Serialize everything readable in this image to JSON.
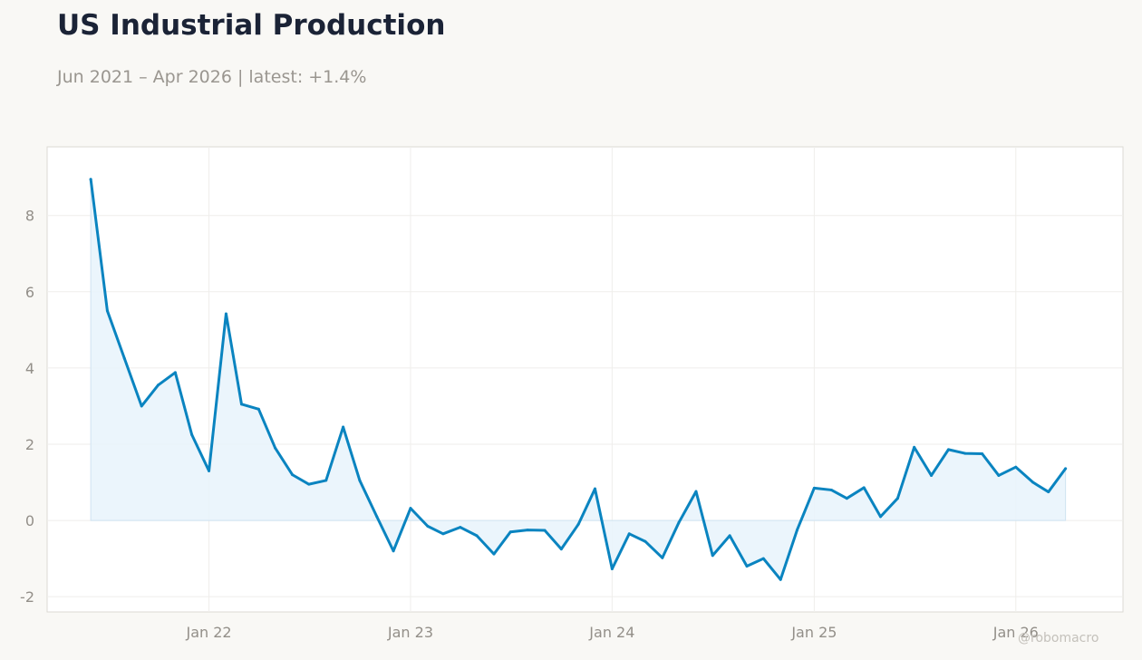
{
  "header": {
    "title": "US Industrial Production",
    "subtitle": "Jun 2021 – Apr 2026 | latest: +1.4%"
  },
  "watermark": "@robomacro",
  "chart_data": {
    "type": "area",
    "title": "US Industrial Production",
    "subtitle": "Jun 2021 – Apr 2026 | latest: +1.4%",
    "xlabel": "",
    "ylabel": "",
    "x_start": "2021-06",
    "x_end": "2026-04",
    "xlim": [
      "2021-03-14",
      "2026-07-14"
    ],
    "ylim": [
      -2.4,
      9.8
    ],
    "x_ticks": [
      {
        "label": "Jan 22",
        "date": "2022-01"
      },
      {
        "label": "Jan 23",
        "date": "2023-01"
      },
      {
        "label": "Jan 24",
        "date": "2024-01"
      },
      {
        "label": "Jan 25",
        "date": "2025-01"
      },
      {
        "label": "Jan 26",
        "date": "2026-01"
      }
    ],
    "y_ticks": [
      {
        "label": "-2",
        "value": -2
      },
      {
        "label": "0",
        "value": 0
      },
      {
        "label": "2",
        "value": 2
      },
      {
        "label": "4",
        "value": 4
      },
      {
        "label": "6",
        "value": 6
      },
      {
        "label": "8",
        "value": 8
      }
    ],
    "grid": true,
    "series": [
      {
        "color": "#0a84c0",
        "fill": "#e8f3fb",
        "values": [
          8.95,
          5.5,
          4.25,
          3.0,
          3.55,
          3.88,
          2.25,
          1.3,
          5.42,
          3.05,
          2.92,
          1.9,
          1.2,
          0.95,
          1.05,
          2.45,
          1.05,
          0.1,
          -0.8,
          0.32,
          -0.15,
          -0.35,
          -0.18,
          -0.4,
          -0.88,
          -0.3,
          -0.25,
          -0.26,
          -0.75,
          -0.1,
          0.83,
          -1.27,
          -0.35,
          -0.55,
          -0.98,
          -0.05,
          0.76,
          -0.92,
          -0.4,
          -1.2,
          -1.0,
          -1.55,
          -0.25,
          0.85,
          0.8,
          0.58,
          0.86,
          0.1,
          0.58,
          1.92,
          1.18,
          1.86,
          1.76,
          1.75,
          1.18,
          1.4,
          1.0,
          0.75,
          1.36
        ]
      }
    ]
  },
  "colors": {
    "background": "#f9f8f5",
    "plot_background": "#ffffff",
    "line": "#0a84c0",
    "fill": "#e8f3fb"
  }
}
